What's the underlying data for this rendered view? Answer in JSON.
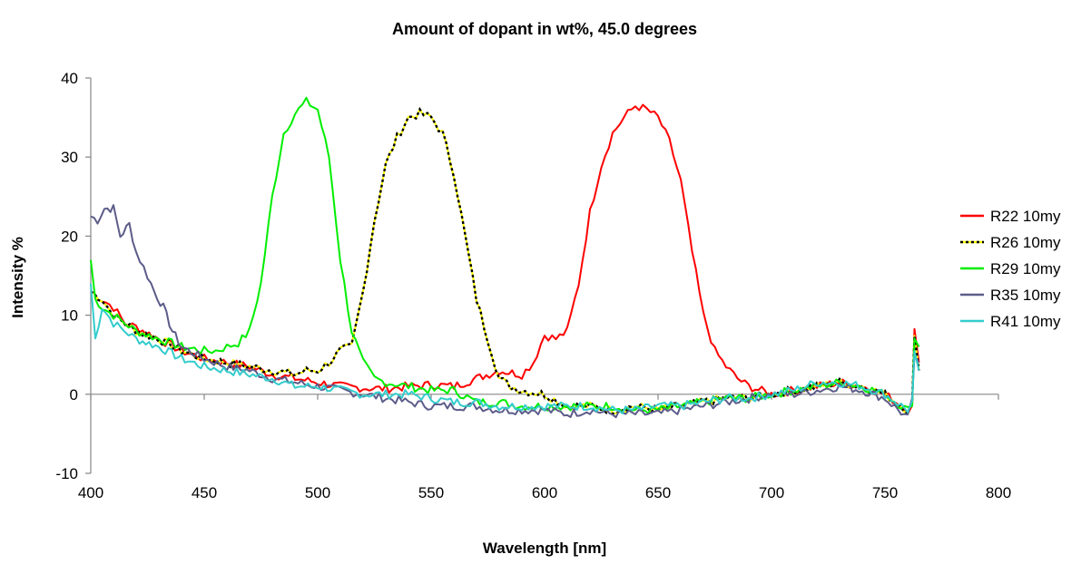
{
  "chart_data": {
    "type": "line",
    "title": "Amount of dopant in wt%, 45.0 degrees",
    "xlabel": "Wavelength [nm]",
    "ylabel": "Intensity %",
    "xlim": [
      400,
      800
    ],
    "ylim": [
      -10,
      40
    ],
    "xticks": [
      400,
      450,
      500,
      550,
      600,
      650,
      700,
      750,
      800
    ],
    "yticks": [
      -10,
      0,
      10,
      20,
      30,
      40
    ],
    "grid": false,
    "legend": "right",
    "series": [
      {
        "name": "R22 10my",
        "color": "#ff0000",
        "dashed": false,
        "points": [
          [
            400,
            13
          ],
          [
            405,
            12
          ],
          [
            410,
            11
          ],
          [
            415,
            9
          ],
          [
            420,
            8.5
          ],
          [
            430,
            7
          ],
          [
            440,
            5.5
          ],
          [
            450,
            4.5
          ],
          [
            460,
            4
          ],
          [
            470,
            3.5
          ],
          [
            480,
            2.5
          ],
          [
            490,
            2
          ],
          [
            500,
            1.5
          ],
          [
            510,
            1
          ],
          [
            520,
            0.8
          ],
          [
            530,
            0.7
          ],
          [
            540,
            1
          ],
          [
            550,
            1.2
          ],
          [
            560,
            1
          ],
          [
            570,
            2
          ],
          [
            580,
            3
          ],
          [
            590,
            2.5
          ],
          [
            595,
            4
          ],
          [
            600,
            7.5
          ],
          [
            605,
            7
          ],
          [
            610,
            8
          ],
          [
            615,
            14
          ],
          [
            620,
            23
          ],
          [
            625,
            29
          ],
          [
            630,
            33
          ],
          [
            635,
            35
          ],
          [
            640,
            36.5
          ],
          [
            645,
            36
          ],
          [
            650,
            35
          ],
          [
            655,
            32
          ],
          [
            660,
            27
          ],
          [
            665,
            18
          ],
          [
            670,
            10
          ],
          [
            675,
            5.5
          ],
          [
            680,
            3.5
          ],
          [
            685,
            2
          ],
          [
            690,
            1
          ],
          [
            700,
            0
          ],
          [
            710,
            0.5
          ],
          [
            720,
            1
          ],
          [
            730,
            1.5
          ],
          [
            740,
            1
          ],
          [
            750,
            0
          ],
          [
            755,
            -1
          ],
          [
            760,
            -2
          ],
          [
            762,
            -1
          ],
          [
            763,
            8
          ],
          [
            765,
            4
          ]
        ]
      },
      {
        "name": "R26 10my",
        "color": "#ffff00",
        "dashed": true,
        "points": [
          [
            400,
            13
          ],
          [
            405,
            12
          ],
          [
            410,
            10
          ],
          [
            420,
            8
          ],
          [
            430,
            7
          ],
          [
            440,
            5.5
          ],
          [
            450,
            4.5
          ],
          [
            460,
            4
          ],
          [
            470,
            3.5
          ],
          [
            480,
            3
          ],
          [
            490,
            2.5
          ],
          [
            495,
            3
          ],
          [
            500,
            3
          ],
          [
            505,
            4
          ],
          [
            510,
            5.5
          ],
          [
            515,
            6
          ],
          [
            520,
            13
          ],
          [
            525,
            22
          ],
          [
            530,
            29
          ],
          [
            535,
            32.5
          ],
          [
            540,
            35
          ],
          [
            545,
            35.5
          ],
          [
            550,
            35
          ],
          [
            555,
            33
          ],
          [
            560,
            28
          ],
          [
            565,
            20
          ],
          [
            570,
            12
          ],
          [
            575,
            7
          ],
          [
            580,
            2
          ],
          [
            585,
            1
          ],
          [
            590,
            0.5
          ],
          [
            600,
            0
          ],
          [
            610,
            -1.5
          ],
          [
            620,
            -1.5
          ],
          [
            630,
            -2
          ],
          [
            640,
            -1.5
          ],
          [
            650,
            -2
          ],
          [
            660,
            -1.5
          ],
          [
            670,
            -1
          ],
          [
            680,
            -0.5
          ],
          [
            690,
            -0.5
          ],
          [
            700,
            0
          ],
          [
            710,
            0.5
          ],
          [
            720,
            1
          ],
          [
            730,
            1.5
          ],
          [
            740,
            1
          ],
          [
            750,
            0
          ],
          [
            755,
            -1
          ],
          [
            760,
            -2
          ],
          [
            762,
            -1
          ],
          [
            763,
            7
          ],
          [
            765,
            3
          ]
        ]
      },
      {
        "name": "R29 10my",
        "color": "#00ee00",
        "dashed": false,
        "points": [
          [
            400,
            17
          ],
          [
            402,
            12
          ],
          [
            405,
            11
          ],
          [
            410,
            10
          ],
          [
            415,
            9
          ],
          [
            420,
            8
          ],
          [
            430,
            7
          ],
          [
            440,
            6
          ],
          [
            450,
            5.5
          ],
          [
            455,
            5.5
          ],
          [
            460,
            6
          ],
          [
            465,
            6.5
          ],
          [
            470,
            8
          ],
          [
            475,
            14
          ],
          [
            480,
            25
          ],
          [
            485,
            33
          ],
          [
            490,
            35.5
          ],
          [
            495,
            37
          ],
          [
            500,
            36
          ],
          [
            505,
            30
          ],
          [
            510,
            17
          ],
          [
            515,
            8
          ],
          [
            520,
            4
          ],
          [
            525,
            2
          ],
          [
            530,
            1.5
          ],
          [
            540,
            1
          ],
          [
            550,
            0.5
          ],
          [
            560,
            0.5
          ],
          [
            570,
            -1
          ],
          [
            580,
            -1
          ],
          [
            590,
            -1.5
          ],
          [
            600,
            -1.5
          ],
          [
            610,
            -1.5
          ],
          [
            620,
            -1.5
          ],
          [
            630,
            -1.5
          ],
          [
            640,
            -2
          ],
          [
            650,
            -2
          ],
          [
            660,
            -1.5
          ],
          [
            670,
            -1
          ],
          [
            680,
            -0.5
          ],
          [
            690,
            -0.5
          ],
          [
            700,
            0
          ],
          [
            710,
            0.5
          ],
          [
            720,
            1
          ],
          [
            730,
            1.5
          ],
          [
            740,
            1
          ],
          [
            750,
            0
          ],
          [
            760,
            -2
          ],
          [
            762,
            -1
          ],
          [
            763,
            7
          ],
          [
            765,
            6
          ]
        ]
      },
      {
        "name": "R35 10my",
        "color": "#5c5c8a",
        "dashed": false,
        "points": [
          [
            400,
            22.5
          ],
          [
            403,
            22
          ],
          [
            406,
            23.5
          ],
          [
            410,
            23.5
          ],
          [
            413,
            20
          ],
          [
            417,
            21.5
          ],
          [
            420,
            18
          ],
          [
            425,
            15
          ],
          [
            428,
            13
          ],
          [
            432,
            11
          ],
          [
            436,
            8
          ],
          [
            440,
            6
          ],
          [
            450,
            4.5
          ],
          [
            460,
            3.5
          ],
          [
            470,
            3
          ],
          [
            480,
            2
          ],
          [
            490,
            1.5
          ],
          [
            500,
            1
          ],
          [
            510,
            0.5
          ],
          [
            520,
            0
          ],
          [
            530,
            -0.5
          ],
          [
            540,
            -1
          ],
          [
            550,
            -1.5
          ],
          [
            560,
            -1.5
          ],
          [
            570,
            -1.5
          ],
          [
            580,
            -2
          ],
          [
            590,
            -2
          ],
          [
            600,
            -2
          ],
          [
            610,
            -2.5
          ],
          [
            620,
            -2
          ],
          [
            630,
            -2.5
          ],
          [
            640,
            -2.5
          ],
          [
            650,
            -2.5
          ],
          [
            660,
            -2
          ],
          [
            670,
            -1.5
          ],
          [
            680,
            -1
          ],
          [
            690,
            -0.5
          ],
          [
            700,
            0
          ],
          [
            710,
            0
          ],
          [
            720,
            0.5
          ],
          [
            730,
            1
          ],
          [
            740,
            0.5
          ],
          [
            750,
            -0.5
          ],
          [
            760,
            -3
          ],
          [
            762,
            -1
          ],
          [
            763,
            5
          ],
          [
            765,
            4
          ]
        ]
      },
      {
        "name": "R41 10my",
        "color": "#33cccc",
        "dashed": false,
        "points": [
          [
            400,
            14
          ],
          [
            402,
            7
          ],
          [
            405,
            11
          ],
          [
            410,
            9
          ],
          [
            415,
            8
          ],
          [
            420,
            7
          ],
          [
            430,
            6
          ],
          [
            440,
            4.5
          ],
          [
            450,
            3.5
          ],
          [
            460,
            3
          ],
          [
            470,
            2.5
          ],
          [
            480,
            2
          ],
          [
            490,
            1
          ],
          [
            500,
            1
          ],
          [
            510,
            0.5
          ],
          [
            520,
            0
          ],
          [
            530,
            0
          ],
          [
            540,
            0
          ],
          [
            550,
            -0.5
          ],
          [
            560,
            -1
          ],
          [
            570,
            -1
          ],
          [
            580,
            -1.5
          ],
          [
            590,
            -1.5
          ],
          [
            600,
            -1.5
          ],
          [
            610,
            -1.5
          ],
          [
            620,
            -1.5
          ],
          [
            630,
            -2
          ],
          [
            640,
            -2
          ],
          [
            650,
            -1.5
          ],
          [
            660,
            -1.5
          ],
          [
            670,
            -1
          ],
          [
            680,
            -0.5
          ],
          [
            690,
            -0.5
          ],
          [
            700,
            0
          ],
          [
            710,
            0.5
          ],
          [
            720,
            1.5
          ],
          [
            730,
            1.5
          ],
          [
            740,
            1
          ],
          [
            750,
            0
          ],
          [
            760,
            -2
          ],
          [
            762,
            -1
          ],
          [
            763,
            5
          ],
          [
            765,
            3
          ]
        ]
      }
    ]
  }
}
